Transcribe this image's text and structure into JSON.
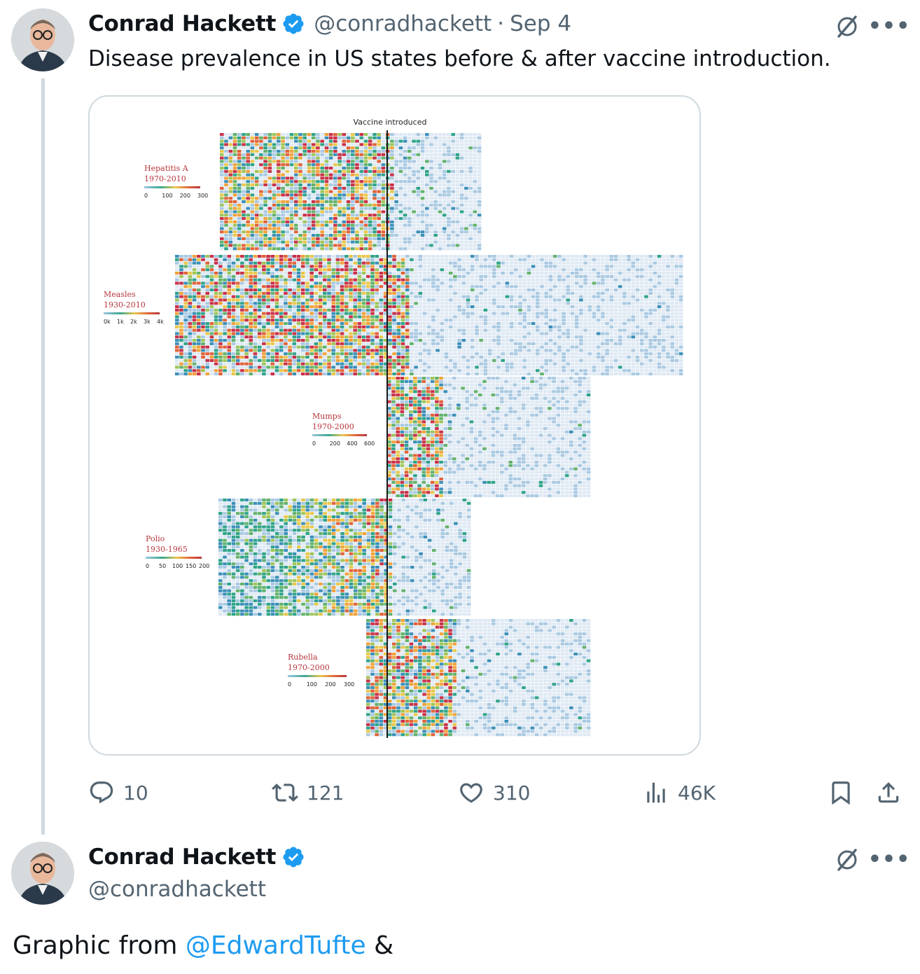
{
  "tweet1": {
    "author_name": "Conrad Hackett",
    "handle": "@conradhackett",
    "separator": "·",
    "date": "Sep 4",
    "text": "Disease prevalence in US states before & after vaccine introduction.",
    "media": {
      "top_label": "Vaccine introduced",
      "panels": [
        {
          "disease": "Hepatitis A",
          "years": "1970-2010",
          "scale": [
            "0",
            "100",
            "200",
            "300"
          ]
        },
        {
          "disease": "Measles",
          "years": "1930-2010",
          "scale": [
            "0k",
            "1k",
            "2k",
            "3k",
            "4k"
          ]
        },
        {
          "disease": "Mumps",
          "years": "1970-2000",
          "scale": [
            "0",
            "200",
            "400",
            "600"
          ]
        },
        {
          "disease": "Polio",
          "years": "1930-1965",
          "scale": [
            "0",
            "50",
            "100",
            "150",
            "200"
          ]
        },
        {
          "disease": "Rubella",
          "years": "1970-2000",
          "scale": [
            "0",
            "100",
            "200",
            "300"
          ]
        }
      ]
    },
    "actions": {
      "reply": "10",
      "retweet": "121",
      "like": "310",
      "views": "46K"
    }
  },
  "tweet2": {
    "author_name": "Conrad Hackett",
    "handle": "@conradhackett",
    "text_prefix": "Graphic from ",
    "mention": "@EdwardTufte",
    "text_suffix": " &"
  },
  "icons": {
    "verified": "verified-badge-icon",
    "grok": "grok-icon",
    "more": "more-icon",
    "reply": "reply-icon",
    "retweet": "retweet-icon",
    "like": "heart-icon",
    "views": "views-icon",
    "bookmark": "bookmark-icon",
    "share": "share-icon"
  },
  "colors": {
    "text": "#0f1419",
    "secondary": "#536471",
    "link": "#1d9bf0",
    "verified": "#1d9bf0",
    "border": "#cfd9de",
    "heat_low": "#e8f0f8",
    "heat_mid": "#3aa68e",
    "heat_high": "#d8403a",
    "label_red": "#b5363c"
  }
}
